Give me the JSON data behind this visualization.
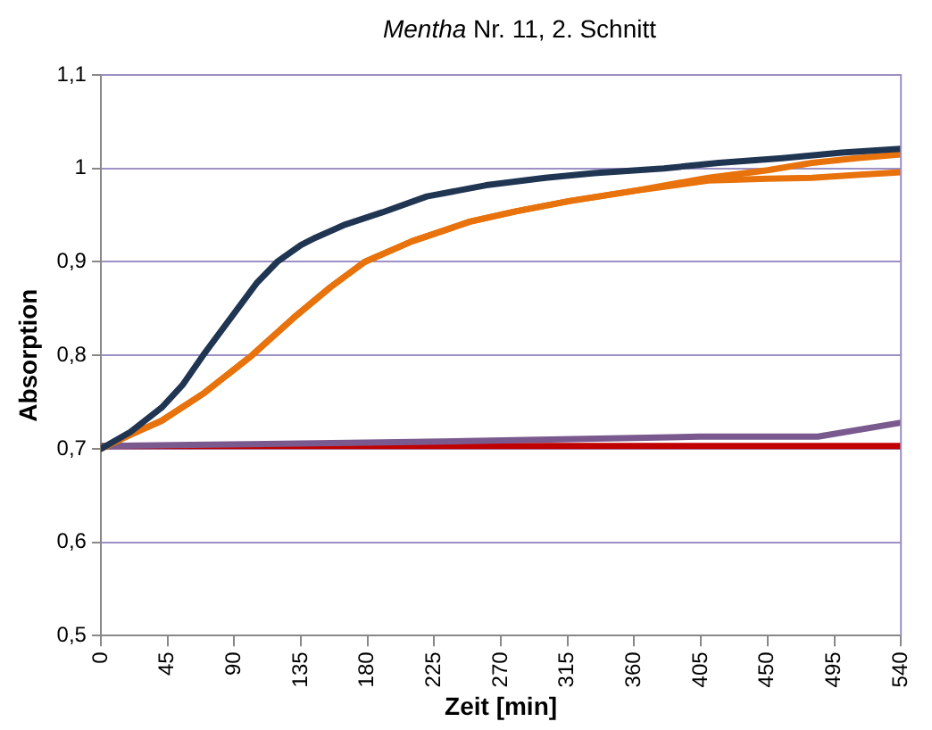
{
  "chart_data": {
    "type": "line",
    "title": "Mentha Nr. 11, 2. Schnitt",
    "xlabel": "Zeit [min]",
    "ylabel": "Absorption",
    "xlim": [
      0,
      540
    ],
    "xticks": [
      0,
      45,
      90,
      135,
      180,
      225,
      270,
      315,
      360,
      405,
      450,
      495,
      540
    ],
    "ylim": [
      0.5,
      1.1
    ],
    "yticks": [
      {
        "value": 0.5,
        "label": "0,5"
      },
      {
        "value": 0.6,
        "label": "0,6"
      },
      {
        "value": 0.7,
        "label": "0,7"
      },
      {
        "value": 0.8,
        "label": "0,8"
      },
      {
        "value": 0.9,
        "label": "0,9"
      },
      {
        "value": 1,
        "label": "1"
      },
      {
        "value": 1.1,
        "label": "1,1"
      }
    ],
    "grid": "y",
    "legend": false,
    "marker": "none",
    "line_style": "solid",
    "series": [
      {
        "color": "#1f3552",
        "x": [
          0,
          20,
          41,
          55,
          69,
          90,
          105,
          119,
          135,
          145,
          165,
          190,
          220,
          260,
          300,
          333,
          380,
          417,
          460,
          500,
          540
        ],
        "values": [
          0.7,
          0.718,
          0.744,
          0.768,
          0.8,
          0.845,
          0.877,
          0.9,
          0.918,
          0.926,
          0.94,
          0.953,
          0.97,
          0.982,
          0.99,
          0.995,
          1.0,
          1.006,
          1.011,
          1.017,
          1.021
        ]
      },
      {
        "color": "#e8720c",
        "x": [
          0,
          20,
          41,
          70,
          102,
          130,
          155,
          178,
          210,
          249,
          280,
          316,
          360,
          410,
          450,
          480,
          510,
          540
        ],
        "values": [
          0.7,
          0.715,
          0.73,
          0.76,
          0.8,
          0.84,
          0.873,
          0.9,
          0.922,
          0.943,
          0.954,
          0.965,
          0.976,
          0.99,
          0.998,
          1.006,
          1.011,
          1.015
        ]
      },
      {
        "color": "#e8720c",
        "x": [
          0,
          20,
          41,
          70,
          102,
          130,
          155,
          178,
          210,
          249,
          280,
          316,
          360,
          410,
          450,
          480,
          510,
          540
        ],
        "values": [
          0.7,
          0.715,
          0.73,
          0.76,
          0.8,
          0.84,
          0.873,
          0.9,
          0.922,
          0.943,
          0.954,
          0.965,
          0.976,
          0.987,
          0.989,
          0.99,
          0.993,
          0.996
        ]
      },
      {
        "color": "#7a5a8e",
        "x": [
          0,
          100,
          200,
          303,
          404,
          484,
          540
        ],
        "values": [
          0.703,
          0.705,
          0.707,
          0.71,
          0.713,
          0.713,
          0.728
        ]
      },
      {
        "color": "#c00000",
        "x": [
          0,
          540
        ],
        "values": [
          0.703,
          0.703
        ]
      }
    ]
  }
}
